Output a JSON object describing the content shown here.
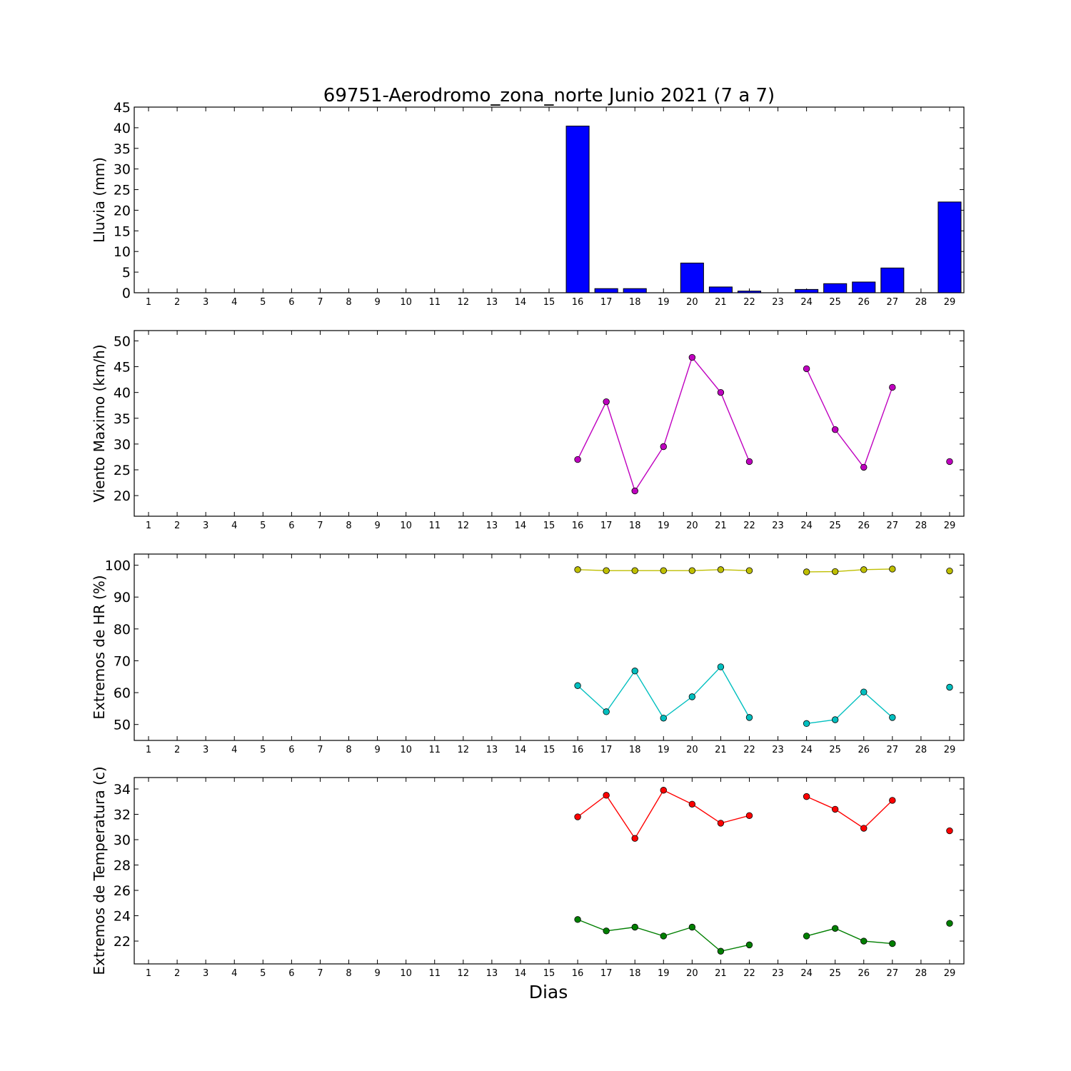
{
  "chart_data": {
    "title": "69751-Aerodromo_zona_norte Junio 2021  (7 a 7)",
    "xlabel": "Dias",
    "x": [
      1,
      2,
      3,
      4,
      5,
      6,
      7,
      8,
      9,
      10,
      11,
      12,
      13,
      14,
      15,
      16,
      17,
      18,
      19,
      20,
      21,
      22,
      23,
      24,
      25,
      26,
      27,
      28,
      29
    ],
    "panels": [
      {
        "type": "bar",
        "ylabel": "Lluvia (mm)",
        "ylim": [
          0,
          45
        ],
        "yticks": [
          0,
          5,
          10,
          15,
          20,
          25,
          30,
          35,
          40,
          45
        ],
        "series": [
          {
            "color": "#0000ff",
            "values": [
              null,
              null,
              null,
              null,
              null,
              null,
              null,
              null,
              null,
              null,
              null,
              null,
              null,
              null,
              null,
              40.4,
              1.0,
              1.0,
              0.0,
              7.2,
              1.4,
              0.4,
              0.0,
              0.8,
              2.2,
              2.6,
              6.0,
              null,
              22.0
            ]
          }
        ]
      },
      {
        "type": "line",
        "ylabel": "Viento Maximo (km/h)",
        "ylim": [
          16,
          52
        ],
        "yticks": [
          20,
          25,
          30,
          35,
          40,
          45,
          50
        ],
        "series": [
          {
            "color": "#bf00bf",
            "values": [
              null,
              null,
              null,
              null,
              null,
              null,
              null,
              null,
              null,
              null,
              null,
              null,
              null,
              null,
              null,
              27.0,
              38.2,
              20.9,
              29.5,
              46.8,
              40.0,
              26.6,
              null,
              44.6,
              32.8,
              25.5,
              41.0,
              null,
              26.6
            ]
          }
        ]
      },
      {
        "type": "line",
        "ylabel": "Extremos de HR (%)",
        "ylim": [
          45,
          103.5
        ],
        "yticks": [
          50,
          60,
          70,
          80,
          90,
          100
        ],
        "series": [
          {
            "color": "#bfbf00",
            "values": [
              null,
              null,
              null,
              null,
              null,
              null,
              null,
              null,
              null,
              null,
              null,
              null,
              null,
              null,
              null,
              98.6,
              98.3,
              98.3,
              98.3,
              98.3,
              98.6,
              98.3,
              null,
              97.9,
              98.0,
              98.6,
              98.8,
              null,
              98.2
            ]
          },
          {
            "color": "#00bfbf",
            "values": [
              null,
              null,
              null,
              null,
              null,
              null,
              null,
              null,
              null,
              null,
              null,
              null,
              null,
              null,
              null,
              62.2,
              54.0,
              66.8,
              52.0,
              58.7,
              68.1,
              52.2,
              null,
              50.3,
              51.5,
              60.2,
              52.2,
              null,
              61.7
            ]
          }
        ]
      },
      {
        "type": "line",
        "ylabel": "Extremos de Temperatura (c)",
        "ylim": [
          20.2,
          34.9
        ],
        "yticks": [
          22,
          24,
          26,
          28,
          30,
          32,
          34
        ],
        "series": [
          {
            "color": "#ff0000",
            "values": [
              null,
              null,
              null,
              null,
              null,
              null,
              null,
              null,
              null,
              null,
              null,
              null,
              null,
              null,
              null,
              31.8,
              33.5,
              30.1,
              33.9,
              32.8,
              31.3,
              31.9,
              null,
              33.4,
              32.4,
              30.9,
              33.1,
              null,
              30.7
            ]
          },
          {
            "color": "#007f00",
            "values": [
              null,
              null,
              null,
              null,
              null,
              null,
              null,
              null,
              null,
              null,
              null,
              null,
              null,
              null,
              null,
              23.7,
              22.8,
              23.1,
              22.4,
              23.1,
              21.2,
              21.7,
              null,
              22.4,
              23.0,
              22.0,
              21.8,
              null,
              23.4
            ]
          }
        ]
      }
    ]
  }
}
